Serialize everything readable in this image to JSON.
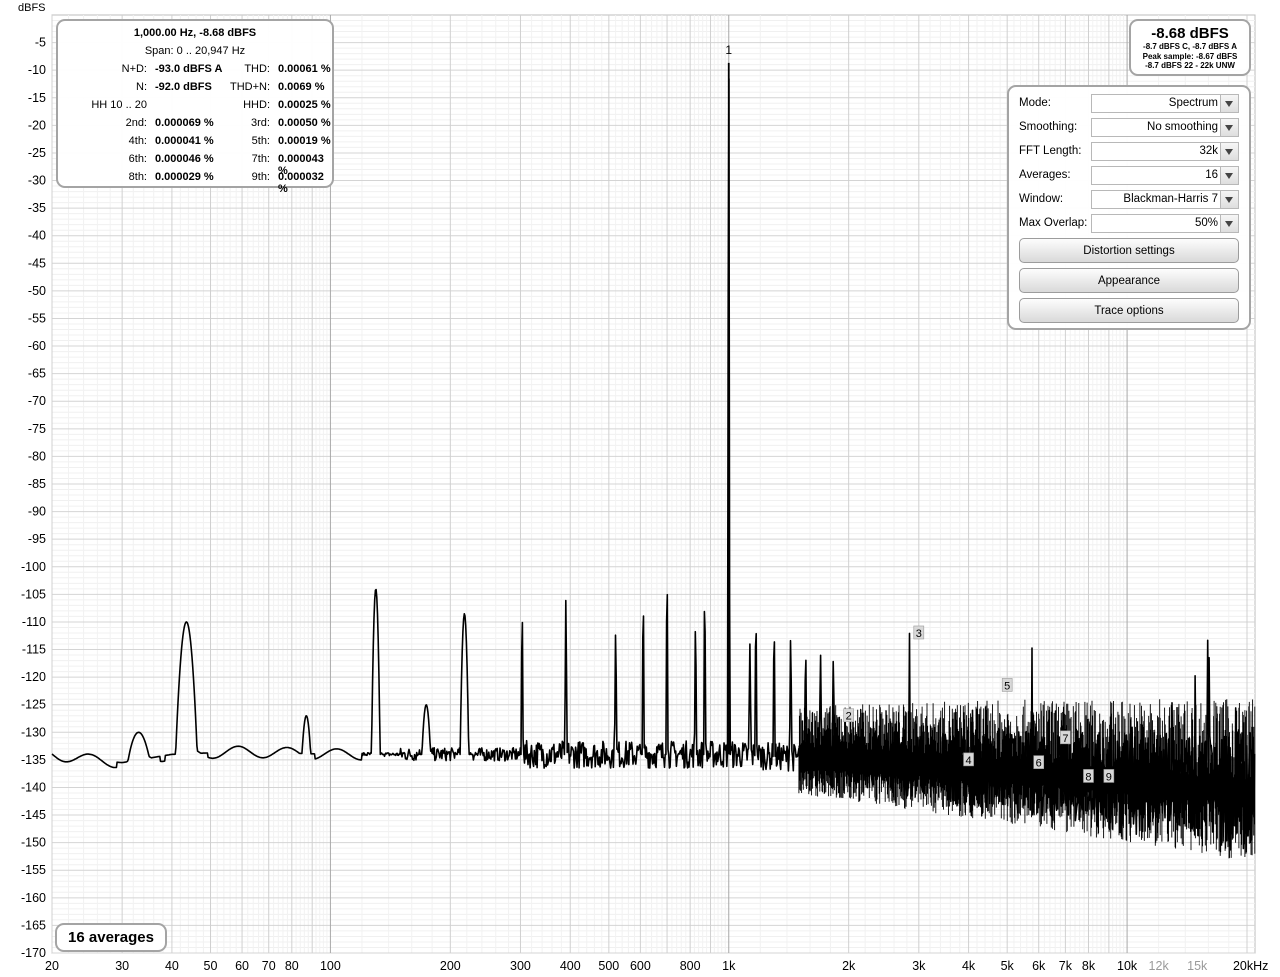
{
  "axis_unit_label": "dBFS",
  "stats": {
    "header": "1,000.00 Hz, -8.68 dBFS",
    "span": "Span: 0 .. 20,947 Hz",
    "rows": [
      {
        "l1": "N+D:",
        "v1": "-93.0 dBFS A",
        "l2": "THD:",
        "v2": "0.00061 %"
      },
      {
        "l1": "N:",
        "v1": "-92.0 dBFS",
        "l2": "THD+N:",
        "v2": "0.0069 %"
      },
      {
        "l1": "HH 10 .. 20",
        "v1": "",
        "l2": "HHD:",
        "v2": "0.00025 %"
      },
      {
        "l1": "2nd:",
        "v1": "0.000069 %",
        "l2": "3rd:",
        "v2": "0.00050 %"
      },
      {
        "l1": "4th:",
        "v1": "0.000041 %",
        "l2": "5th:",
        "v2": "0.00019 %"
      },
      {
        "l1": "6th:",
        "v1": "0.000046 %",
        "l2": "7th:",
        "v2": "0.000043 %"
      },
      {
        "l1": "8th:",
        "v1": "0.000029 %",
        "l2": "9th:",
        "v2": "0.000032 %"
      }
    ]
  },
  "level_box": {
    "main": "-8.68 dBFS",
    "line1": "-8.7 dBFS C, -8.7 dBFS A",
    "line2": "Peak sample: -8.67 dBFS",
    "line3": "-8.7 dBFS 22 - 22k UNW"
  },
  "settings": {
    "rows": [
      {
        "label": "Mode:",
        "value": "Spectrum"
      },
      {
        "label": "Smoothing:",
        "value": "No  smoothing"
      },
      {
        "label": "FFT Length:",
        "value": "32k"
      },
      {
        "label": "Averages:",
        "value": "16"
      },
      {
        "label": "Window:",
        "value": "Blackman-Harris 7"
      },
      {
        "label": "Max Overlap:",
        "value": "50%"
      }
    ],
    "buttons": [
      "Distortion settings",
      "Appearance",
      "Trace options"
    ]
  },
  "averages_badge": "16 averages",
  "chart_data": {
    "type": "line",
    "x_scale": "log",
    "xlim": [
      20,
      20947
    ],
    "ylim": [
      -170,
      0
    ],
    "ylabel": "dBFS",
    "grid": true,
    "x_ticks": [
      {
        "v": 20,
        "t": "20"
      },
      {
        "v": 30,
        "t": "30"
      },
      {
        "v": 40,
        "t": "40"
      },
      {
        "v": 50,
        "t": "50"
      },
      {
        "v": 60,
        "t": "60"
      },
      {
        "v": 70,
        "t": "70"
      },
      {
        "v": 80,
        "t": "80"
      },
      {
        "v": 100,
        "t": "100"
      },
      {
        "v": 200,
        "t": "200"
      },
      {
        "v": 300,
        "t": "300"
      },
      {
        "v": 400,
        "t": "400"
      },
      {
        "v": 500,
        "t": "500"
      },
      {
        "v": 600,
        "t": "600"
      },
      {
        "v": 800,
        "t": "800"
      },
      {
        "v": 1000,
        "t": "1k"
      },
      {
        "v": 2000,
        "t": "2k"
      },
      {
        "v": 3000,
        "t": "3k"
      },
      {
        "v": 4000,
        "t": "4k"
      },
      {
        "v": 5000,
        "t": "5k"
      },
      {
        "v": 6000,
        "t": "6k"
      },
      {
        "v": 7000,
        "t": "7k"
      },
      {
        "v": 8000,
        "t": "8k"
      },
      {
        "v": 10000,
        "t": "10k"
      },
      {
        "v": 12000,
        "t": "12k",
        "muted": true
      },
      {
        "v": 15000,
        "t": "15k",
        "muted": true
      },
      {
        "v": 20000,
        "t": "20kHz"
      }
    ],
    "y_ticks": [
      -5,
      -10,
      -15,
      -20,
      -25,
      -30,
      -35,
      -40,
      -45,
      -50,
      -55,
      -60,
      -65,
      -70,
      -75,
      -80,
      -85,
      -90,
      -95,
      -100,
      -105,
      -110,
      -115,
      -120,
      -125,
      -130,
      -135,
      -140,
      -145,
      -150,
      -155,
      -160,
      -165,
      -170
    ],
    "fundamental": {
      "label": "1",
      "freq": 1000,
      "dbfs": -8.68
    },
    "harmonic_markers": [
      {
        "label": "2",
        "freq": 2000,
        "dbfs": -127
      },
      {
        "label": "3",
        "freq": 3000,
        "dbfs": -112
      },
      {
        "label": "4",
        "freq": 4000,
        "dbfs": -135
      },
      {
        "label": "5",
        "freq": 5000,
        "dbfs": -121.5
      },
      {
        "label": "6",
        "freq": 6000,
        "dbfs": -135.5
      },
      {
        "label": "7",
        "freq": 7000,
        "dbfs": -131
      },
      {
        "label": "8",
        "freq": 8000,
        "dbfs": -138
      },
      {
        "label": "9",
        "freq": 9000,
        "dbfs": -138
      }
    ],
    "noise_floor": [
      [
        20,
        -134
      ],
      [
        25,
        -135
      ],
      [
        30,
        -135.5
      ],
      [
        40,
        -134
      ],
      [
        60,
        -133.5
      ],
      [
        100,
        -134
      ],
      [
        200,
        -134
      ],
      [
        500,
        -134
      ],
      [
        1000,
        -134
      ],
      [
        2000,
        -135
      ],
      [
        5000,
        -137
      ],
      [
        10000,
        -139
      ],
      [
        20947,
        -141
      ]
    ],
    "spur_peaks": [
      {
        "freq": 33,
        "dbfs": -130
      },
      {
        "freq": 43.5,
        "dbfs": -110
      },
      {
        "freq": 87,
        "dbfs": -127
      },
      {
        "freq": 130,
        "dbfs": -104
      },
      {
        "freq": 174,
        "dbfs": -125
      },
      {
        "freq": 217,
        "dbfs": -108.5
      },
      {
        "freq": 303,
        "dbfs": -109
      },
      {
        "freq": 390,
        "dbfs": -106
      },
      {
        "freq": 520,
        "dbfs": -112
      },
      {
        "freq": 610,
        "dbfs": -107
      },
      {
        "freq": 700,
        "dbfs": -103
      },
      {
        "freq": 825,
        "dbfs": -111
      },
      {
        "freq": 870,
        "dbfs": -106
      },
      {
        "freq": 1130,
        "dbfs": -114
      },
      {
        "freq": 1170,
        "dbfs": -110
      },
      {
        "freq": 1300,
        "dbfs": -112
      },
      {
        "freq": 1430,
        "dbfs": -113
      },
      {
        "freq": 1560,
        "dbfs": -116
      },
      {
        "freq": 1700,
        "dbfs": -116
      },
      {
        "freq": 1830,
        "dbfs": -117
      }
    ]
  }
}
